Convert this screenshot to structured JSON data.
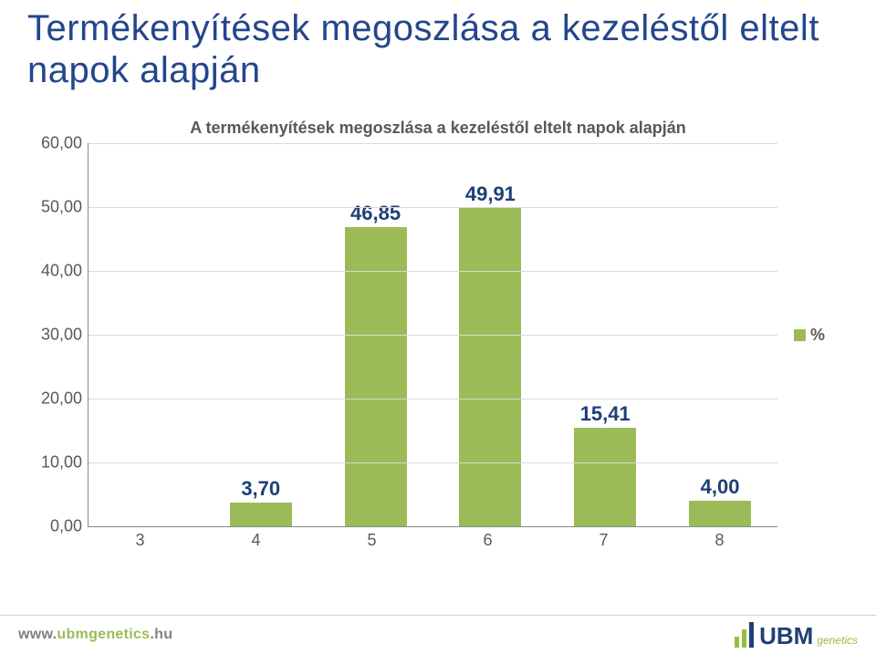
{
  "colors": {
    "title": "#23468c",
    "chart_title": "#595959",
    "axis_text": "#595959",
    "gridline": "#d9d9d9",
    "bar": "#9bbb59",
    "bar_label": "#1e3f77",
    "footer_url_prefix": "#808080",
    "footer_url_domain": "#9bbb59",
    "logo_green": "#97bf3d",
    "logo_navy": "#1e3f77",
    "legend_text": "#595959"
  },
  "title": "Termékenyítések megoszlása a kezeléstől eltelt napok alapján",
  "chart": {
    "type": "bar",
    "title": "A termékenyítések megoszlása a kezeléstől eltelt napok alapján",
    "title_fontsize": 18,
    "categories": [
      "3",
      "4",
      "5",
      "6",
      "7",
      "8"
    ],
    "values": [
      0,
      3.7,
      46.85,
      49.91,
      15.41,
      4.0
    ],
    "value_labels": [
      "",
      "3,70",
      "46,85",
      "49,91",
      "15,41",
      "4,00"
    ],
    "ylim_max": 60,
    "y_ticks": [
      "60,00",
      "50,00",
      "40,00",
      "30,00",
      "20,00",
      "10,00",
      "0,00"
    ],
    "bar_label_fontsize": 22,
    "axis_fontsize": 18,
    "legend_label": "%",
    "legend_fontsize": 18
  },
  "footer": {
    "url_prefix": "www.",
    "url_domain": "ubmgenetics",
    "url_suffix": ".hu",
    "logo_main": "UBM",
    "logo_sub": "genetics",
    "logo_fontsize": 26
  }
}
